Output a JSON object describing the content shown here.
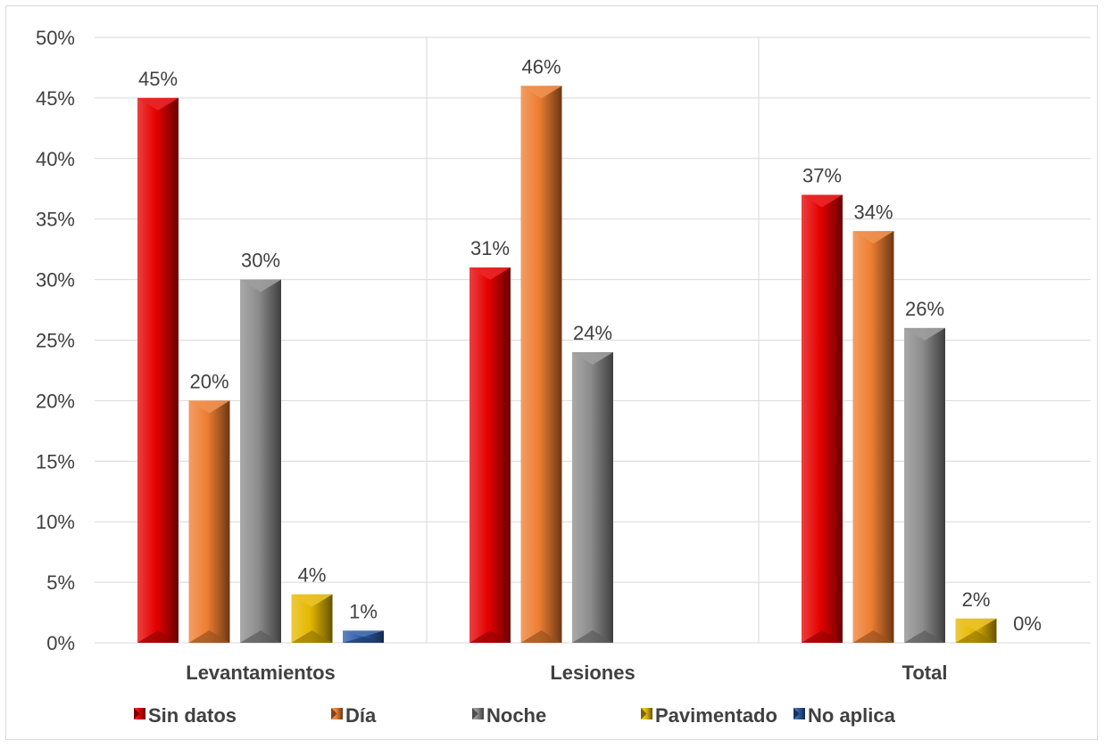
{
  "chart_data": {
    "type": "bar",
    "categories": [
      "Levantamientos",
      "Lesiones",
      "Total"
    ],
    "series": [
      {
        "name": "Sin datos",
        "values": [
          45,
          31,
          37
        ],
        "labels": [
          "45%",
          "31%",
          "37%"
        ],
        "color": "#e60000"
      },
      {
        "name": "Día",
        "values": [
          20,
          46,
          34
        ],
        "labels": [
          "20%",
          "46%",
          "34%"
        ],
        "color": "#ed7d31"
      },
      {
        "name": "Noche",
        "values": [
          30,
          24,
          26
        ],
        "labels": [
          "30%",
          "24%",
          "26%"
        ],
        "color": "#8c8c8c"
      },
      {
        "name": "Pavimentado",
        "values": [
          4,
          null,
          2
        ],
        "labels": [
          "4%",
          "",
          "2%"
        ],
        "color": "#e6b800"
      },
      {
        "name": "No aplica",
        "values": [
          1,
          null,
          0
        ],
        "labels": [
          "1%",
          "",
          "0%"
        ],
        "color": "#2e5ca8"
      }
    ],
    "ylim": [
      0,
      50
    ],
    "yticks": [
      "0%",
      "5%",
      "10%",
      "15%",
      "20%",
      "25%",
      "30%",
      "35%",
      "40%",
      "45%",
      "50%"
    ],
    "grid": true,
    "legend": "bottom"
  }
}
